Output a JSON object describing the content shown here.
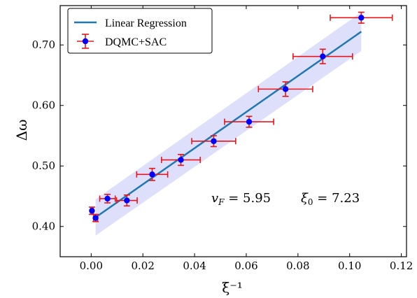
{
  "chart_data": {
    "type": "scatter",
    "xlabel": "ξ⁻¹",
    "ylabel": "Δω",
    "xlim": [
      -0.012,
      0.122
    ],
    "ylim": [
      0.35,
      0.765
    ],
    "xticks": [
      0.0,
      0.02,
      0.04,
      0.06,
      0.08,
      0.1,
      0.12
    ],
    "xtick_labels": [
      "0.00",
      "0.02",
      "0.04",
      "0.06",
      "0.08",
      "0.10",
      "0.12"
    ],
    "yticks": [
      0.4,
      0.5,
      0.6,
      0.7
    ],
    "ytick_labels": [
      "0.40",
      "0.50",
      "0.60",
      "0.70"
    ],
    "grid": false,
    "legend_position": "top-left",
    "colors": {
      "regression_line": "#1f77b4",
      "confidence_band": "#c8ccf8",
      "markers": "#0000ff",
      "errorbars": "#e8161b"
    },
    "regression": {
      "name": "Linear Regression",
      "x": [
        0.0017,
        0.1045
      ],
      "y": [
        0.415,
        0.722
      ],
      "band_lower": [
        0.385,
        0.69
      ],
      "band_upper": [
        0.445,
        0.754
      ]
    },
    "points": {
      "name": "DQMC+SAC",
      "x": [
        0.0003,
        0.0017,
        0.0063,
        0.0138,
        0.0236,
        0.0347,
        0.0474,
        0.0611,
        0.0752,
        0.0896,
        0.1045
      ],
      "y": [
        0.426,
        0.414,
        0.446,
        0.443,
        0.486,
        0.51,
        0.541,
        0.573,
        0.627,
        0.681,
        0.745
      ],
      "xerr": [
        0.0005,
        0.0008,
        0.003,
        0.004,
        0.006,
        0.0075,
        0.0085,
        0.0095,
        0.0105,
        0.0115,
        0.012
      ],
      "yerr": [
        0.006,
        0.006,
        0.007,
        0.009,
        0.01,
        0.009,
        0.009,
        0.009,
        0.012,
        0.012,
        0.009
      ]
    },
    "annotations": [
      {
        "text": "v_F = 5.95",
        "main": "v",
        "sub": "F",
        "rest": " = 5.95"
      },
      {
        "text": "ξ_0 = 7.23",
        "main": "ξ",
        "sub": "0",
        "rest": " = 7.23"
      }
    ]
  }
}
